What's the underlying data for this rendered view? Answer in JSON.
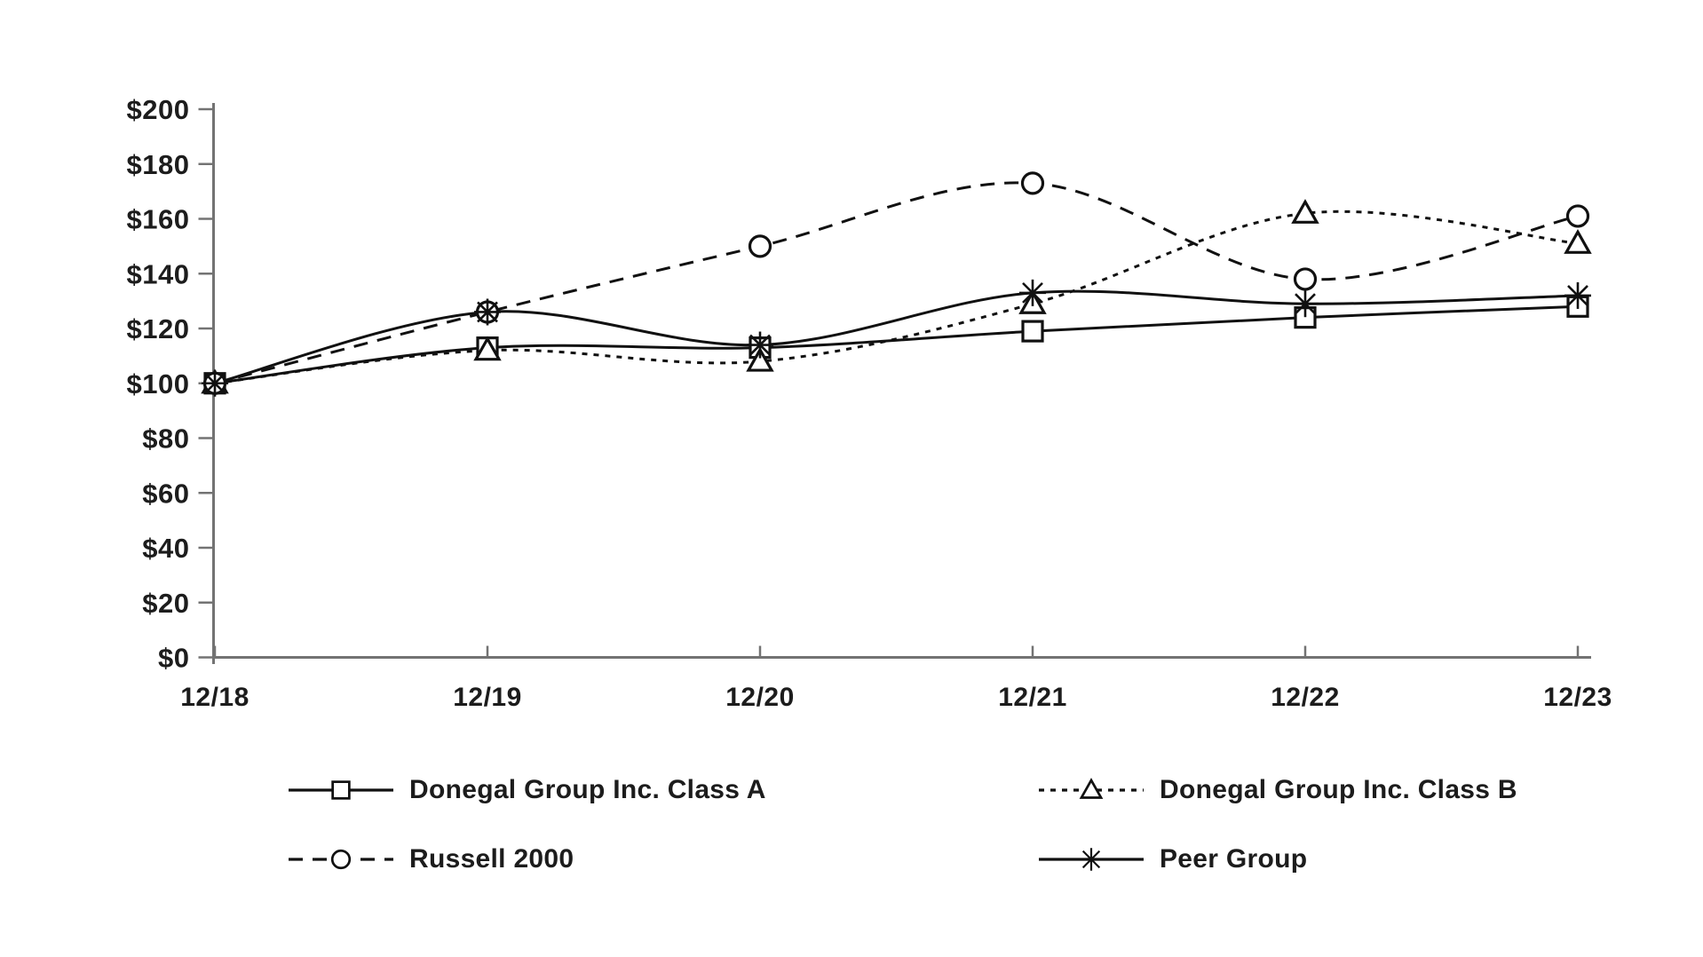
{
  "chart_data": {
    "type": "line",
    "title": "",
    "xlabel": "",
    "ylabel": "",
    "categories": [
      "12/18",
      "12/19",
      "12/20",
      "12/21",
      "12/22",
      "12/23"
    ],
    "y_ticks": [
      "$0",
      "$20",
      "$40",
      "$60",
      "$80",
      "$100",
      "$120",
      "$140",
      "$160",
      "$180",
      "$200"
    ],
    "y_tick_values": [
      0,
      20,
      40,
      60,
      80,
      100,
      120,
      140,
      160,
      180,
      200
    ],
    "ylim": [
      0,
      200
    ],
    "grid": false,
    "legend_position": "bottom-two-columns",
    "colors": {
      "series": "#111111",
      "axis": "#737373",
      "text": "#1c1c1c",
      "background": "#ffffff",
      "marker_fill": "#ffffff"
    },
    "series": [
      {
        "name": "Donegal Group Inc. Class A",
        "line_style": "solid",
        "marker": "square",
        "values": [
          100,
          113,
          113,
          119,
          124,
          128
        ]
      },
      {
        "name": "Donegal Group Inc. Class B",
        "line_style": "dotted",
        "marker": "triangle",
        "values": [
          100,
          112,
          108,
          129,
          162,
          151
        ]
      },
      {
        "name": "Russell 2000",
        "line_style": "dashed",
        "marker": "circle",
        "values": [
          100,
          126,
          150,
          173,
          138,
          161
        ]
      },
      {
        "name": "Peer Group",
        "line_style": "solid",
        "marker": "asterisk",
        "values": [
          100,
          126,
          114,
          133,
          129,
          132
        ]
      }
    ]
  }
}
